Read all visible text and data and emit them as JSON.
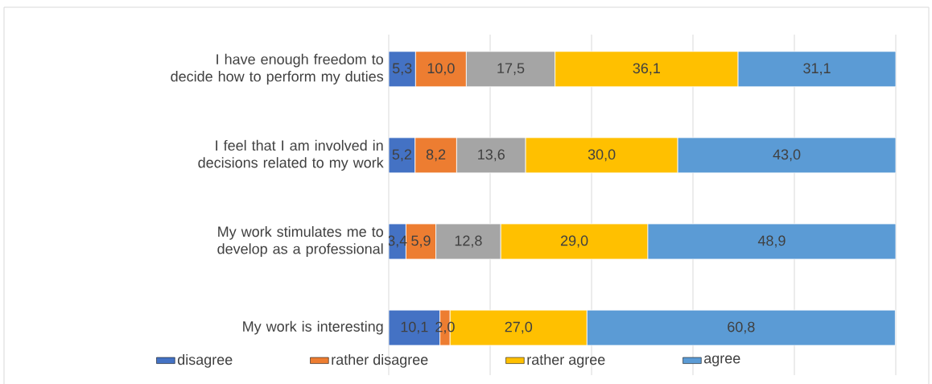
{
  "chart_data": {
    "type": "bar",
    "orientation": "horizontal",
    "stacked": true,
    "categories": [
      "I have enough freedom to decide how to perform my duties",
      "I feel that I am involved in decisions related to my work",
      "My work stimulates me to develop as a professional",
      "My work is interesting"
    ],
    "series": [
      {
        "name": "disagree",
        "color": "#4472c4",
        "values": [
          5.3,
          5.2,
          3.4,
          10.1
        ],
        "value_labels": [
          "5,3",
          "5,2",
          "3,4",
          "10,1"
        ]
      },
      {
        "name": "rather disagree",
        "color": "#ed7d31",
        "values": [
          10.0,
          8.2,
          5.9,
          2.0
        ],
        "value_labels": [
          "10,0",
          "8,2",
          "5,9",
          "2,0"
        ]
      },
      {
        "color": "#a5a5a5",
        "values": [
          17.5,
          13.6,
          12.8,
          null
        ],
        "value_labels": [
          "17,5",
          "13,6",
          "12,8",
          null
        ]
      },
      {
        "name": "rather agree",
        "color": "#ffc000",
        "values": [
          36.1,
          30.0,
          29.0,
          27.0
        ],
        "value_labels": [
          "36,1",
          "30,0",
          "29,0",
          "27,0"
        ]
      },
      {
        "name": "agree",
        "color": "#5b9bd5",
        "values": [
          31.1,
          43.0,
          48.9,
          60.8
        ],
        "value_labels": [
          "31,1",
          "43,0",
          "48,9",
          "60,8"
        ]
      }
    ],
    "xlim": [
      0,
      100
    ],
    "xticks": [
      {
        "value": 0,
        "label": null
      },
      {
        "value": 20,
        "label": null
      },
      {
        "value": 40,
        "label": null
      },
      {
        "value": 60,
        "label": null
      },
      {
        "value": 80,
        "label": null
      },
      {
        "value": 100,
        "label": null
      }
    ],
    "grid": "x",
    "legend": "bottom",
    "tick_labels": "y"
  }
}
